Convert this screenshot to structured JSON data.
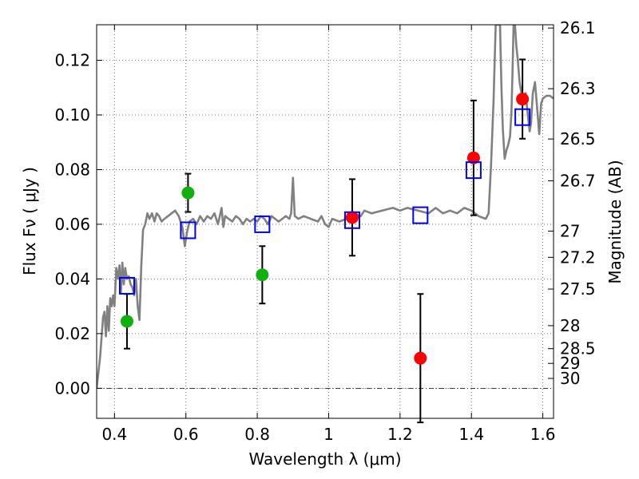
{
  "chart_data": {
    "type": "scatter",
    "xlabel": "Wavelength  λ (μm)",
    "ylabel": "Flux  Fν  ( μJy )",
    "ylabel_right": "Magnitude (AB)",
    "xlim": [
      0.35,
      1.63
    ],
    "ylim": [
      -0.011,
      0.133
    ],
    "grid": true,
    "x_ticks": [
      0.4,
      0.6,
      0.8,
      1.0,
      1.2,
      1.4,
      1.6
    ],
    "x_tick_labels": [
      "0.4",
      "0.6",
      "0.8",
      "1",
      "1.2",
      "1.4",
      "1.6"
    ],
    "y_ticks": [
      0.0,
      0.02,
      0.04,
      0.06,
      0.08,
      0.1,
      0.12
    ],
    "y_tick_labels": [
      "0.00",
      "0.02",
      "0.04",
      "0.06",
      "0.08",
      "0.10",
      "0.12"
    ],
    "right_ticks": [
      {
        "label": "26.1",
        "flux": 0.1318
      },
      {
        "label": "26.3",
        "flux": 0.1096
      },
      {
        "label": "26.5",
        "flux": 0.0912
      },
      {
        "label": "26.7",
        "flux": 0.0759
      },
      {
        "label": "27",
        "flux": 0.0575
      },
      {
        "label": "27.2",
        "flux": 0.0479
      },
      {
        "label": "27.5",
        "flux": 0.0363
      },
      {
        "label": "28",
        "flux": 0.0229
      },
      {
        "label": "28.5",
        "flux": 0.0145
      },
      {
        "label": "29",
        "flux": 0.0091
      },
      {
        "label": "30",
        "flux": 0.0036
      }
    ],
    "series": [
      {
        "marker": "circle",
        "color": "#10b010",
        "points": [
          {
            "x": 0.435,
            "y": 0.0245,
            "err": 0.01
          },
          {
            "x": 0.606,
            "y": 0.0715,
            "err": 0.007
          },
          {
            "x": 0.814,
            "y": 0.0415,
            "err": 0.0105
          }
        ]
      },
      {
        "marker": "circle",
        "color": "#ff0000",
        "points": [
          {
            "x": 1.066,
            "y": 0.0625,
            "err": 0.014
          },
          {
            "x": 1.257,
            "y": 0.011,
            "err": 0.0235
          },
          {
            "x": 1.406,
            "y": 0.0843,
            "err": 0.021
          },
          {
            "x": 1.543,
            "y": 0.1058,
            "err": 0.0145
          }
        ]
      },
      {
        "marker": "square-open",
        "color": "#0000ff",
        "points": [
          {
            "x": 0.435,
            "y": 0.0375
          },
          {
            "x": 0.606,
            "y": 0.0578
          },
          {
            "x": 0.814,
            "y": 0.06
          },
          {
            "x": 1.066,
            "y": 0.0615
          },
          {
            "x": 1.257,
            "y": 0.0633
          },
          {
            "x": 1.406,
            "y": 0.0798
          },
          {
            "x": 1.543,
            "y": 0.0992
          }
        ]
      },
      {
        "marker": "line",
        "color": "#808080",
        "points": [
          [
            0.35,
            0.0
          ],
          [
            0.36,
            0.012
          ],
          [
            0.368,
            0.026
          ],
          [
            0.372,
            0.028
          ],
          [
            0.376,
            0.019
          ],
          [
            0.38,
            0.03
          ],
          [
            0.384,
            0.021
          ],
          [
            0.388,
            0.033
          ],
          [
            0.392,
            0.03
          ],
          [
            0.396,
            0.034
          ],
          [
            0.4,
            0.03
          ],
          [
            0.405,
            0.044
          ],
          [
            0.41,
            0.04
          ],
          [
            0.414,
            0.045
          ],
          [
            0.418,
            0.035
          ],
          [
            0.422,
            0.046
          ],
          [
            0.426,
            0.038
          ],
          [
            0.43,
            0.044
          ],
          [
            0.435,
            0.04
          ],
          [
            0.44,
            0.041
          ],
          [
            0.445,
            0.038
          ],
          [
            0.45,
            0.037
          ],
          [
            0.455,
            0.034
          ],
          [
            0.46,
            0.04
          ],
          [
            0.465,
            0.03
          ],
          [
            0.47,
            0.025
          ],
          [
            0.475,
            0.045
          ],
          [
            0.48,
            0.058
          ],
          [
            0.486,
            0.06
          ],
          [
            0.492,
            0.064
          ],
          [
            0.498,
            0.062
          ],
          [
            0.505,
            0.064
          ],
          [
            0.512,
            0.061
          ],
          [
            0.518,
            0.064
          ],
          [
            0.525,
            0.063
          ],
          [
            0.532,
            0.061
          ],
          [
            0.54,
            0.062
          ],
          [
            0.55,
            0.063
          ],
          [
            0.56,
            0.064
          ],
          [
            0.57,
            0.065
          ],
          [
            0.58,
            0.063
          ],
          [
            0.59,
            0.059
          ],
          [
            0.597,
            0.052
          ],
          [
            0.603,
            0.057
          ],
          [
            0.61,
            0.061
          ],
          [
            0.62,
            0.062
          ],
          [
            0.63,
            0.06
          ],
          [
            0.64,
            0.063
          ],
          [
            0.65,
            0.061
          ],
          [
            0.66,
            0.063
          ],
          [
            0.67,
            0.062
          ],
          [
            0.68,
            0.064
          ],
          [
            0.69,
            0.06
          ],
          [
            0.7,
            0.066
          ],
          [
            0.705,
            0.059
          ],
          [
            0.71,
            0.063
          ],
          [
            0.72,
            0.062
          ],
          [
            0.73,
            0.061
          ],
          [
            0.74,
            0.063
          ],
          [
            0.75,
            0.062
          ],
          [
            0.76,
            0.06
          ],
          [
            0.77,
            0.062
          ],
          [
            0.78,
            0.061
          ],
          [
            0.79,
            0.062
          ],
          [
            0.8,
            0.061
          ],
          [
            0.81,
            0.063
          ],
          [
            0.82,
            0.062
          ],
          [
            0.83,
            0.06
          ],
          [
            0.84,
            0.063
          ],
          [
            0.85,
            0.062
          ],
          [
            0.86,
            0.061
          ],
          [
            0.87,
            0.062
          ],
          [
            0.88,
            0.063
          ],
          [
            0.89,
            0.062
          ],
          [
            0.895,
            0.064
          ],
          [
            0.9,
            0.077
          ],
          [
            0.905,
            0.063
          ],
          [
            0.915,
            0.062
          ],
          [
            0.93,
            0.063
          ],
          [
            0.95,
            0.062
          ],
          [
            0.97,
            0.061
          ],
          [
            0.98,
            0.063
          ],
          [
            0.99,
            0.06
          ],
          [
            1.0,
            0.059
          ],
          [
            1.01,
            0.062
          ],
          [
            1.03,
            0.061
          ],
          [
            1.05,
            0.062
          ],
          [
            1.07,
            0.064
          ],
          [
            1.09,
            0.063
          ],
          [
            1.1,
            0.065
          ],
          [
            1.12,
            0.064
          ],
          [
            1.15,
            0.065
          ],
          [
            1.18,
            0.066
          ],
          [
            1.2,
            0.065
          ],
          [
            1.22,
            0.066
          ],
          [
            1.25,
            0.065
          ],
          [
            1.28,
            0.064
          ],
          [
            1.3,
            0.066
          ],
          [
            1.32,
            0.064
          ],
          [
            1.34,
            0.065
          ],
          [
            1.36,
            0.064
          ],
          [
            1.38,
            0.066
          ],
          [
            1.4,
            0.065
          ],
          [
            1.42,
            0.063
          ],
          [
            1.44,
            0.062
          ],
          [
            1.448,
            0.064
          ],
          [
            1.455,
            0.082
          ],
          [
            1.462,
            0.105
          ],
          [
            1.468,
            0.133
          ],
          [
            1.475,
            0.133
          ],
          [
            1.48,
            0.133
          ],
          [
            1.484,
            0.11
          ],
          [
            1.488,
            0.095
          ],
          [
            1.493,
            0.084
          ],
          [
            1.498,
            0.087
          ],
          [
            1.503,
            0.089
          ],
          [
            1.508,
            0.092
          ],
          [
            1.512,
            0.101
          ],
          [
            1.515,
            0.115
          ],
          [
            1.518,
            0.133
          ],
          [
            1.522,
            0.133
          ],
          [
            1.526,
            0.125
          ],
          [
            1.53,
            0.12
          ],
          [
            1.535,
            0.112
          ],
          [
            1.54,
            0.108
          ],
          [
            1.546,
            0.105
          ],
          [
            1.552,
            0.108
          ],
          [
            1.558,
            0.1
          ],
          [
            1.563,
            0.094
          ],
          [
            1.567,
            0.097
          ],
          [
            1.572,
            0.108
          ],
          [
            1.578,
            0.112
          ],
          [
            1.585,
            0.101
          ],
          [
            1.59,
            0.093
          ],
          [
            1.595,
            0.104
          ],
          [
            1.6,
            0.106
          ],
          [
            1.61,
            0.107
          ],
          [
            1.62,
            0.107
          ],
          [
            1.63,
            0.106
          ]
        ]
      }
    ]
  }
}
